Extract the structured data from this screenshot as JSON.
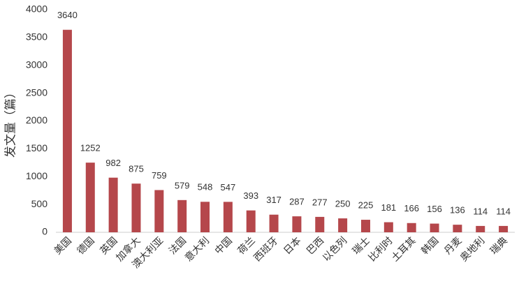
{
  "chart_data": {
    "type": "bar",
    "y_label": "发文量（篇）",
    "categories": [
      "美国",
      "德国",
      "英国",
      "加拿大",
      "澳大利亚",
      "法国",
      "意大利",
      "中国",
      "荷兰",
      "西班牙",
      "日本",
      "巴西",
      "以色列",
      "瑞士",
      "比利时",
      "土耳其",
      "韩国",
      "丹麦",
      "奥地利",
      "瑞典"
    ],
    "values": [
      3640,
      1252,
      982,
      875,
      759,
      579,
      548,
      547,
      393,
      317,
      287,
      277,
      250,
      225,
      181,
      166,
      156,
      136,
      114,
      114
    ],
    "color": "#b5474b",
    "ylim": [
      0,
      4000
    ],
    "yticks": [
      0,
      500,
      1000,
      1500,
      2000,
      2500,
      3000,
      3500,
      4000
    ],
    "grid": false
  }
}
